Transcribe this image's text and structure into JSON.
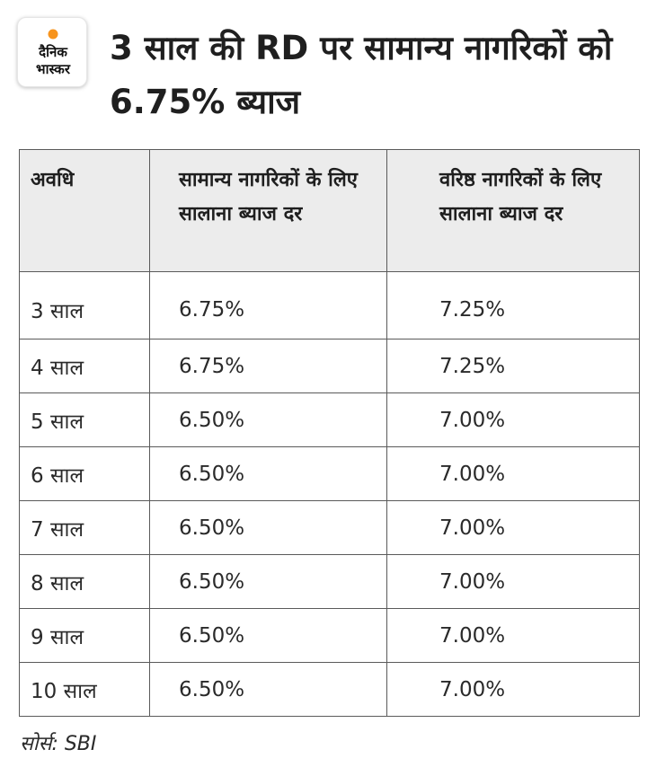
{
  "logo": {
    "line1": "दैनिक",
    "line2": "भास्कर",
    "sun_color": "#f7941d"
  },
  "title": "3 साल की RD पर सामान्य नागरिकों को 6.75% ब्याज",
  "table": {
    "headers": [
      "अवधि",
      "सामान्य नागरिकों के लिए सालाना ब्याज दर",
      "वरिष्ठ नागरिकों के लिए सालाना ब्याज दर"
    ],
    "rows": [
      [
        "3 साल",
        "6.75%",
        "7.25%"
      ],
      [
        "4 साल",
        "6.75%",
        "7.25%"
      ],
      [
        "5 साल",
        "6.50%",
        "7.00%"
      ],
      [
        "6 साल",
        "6.50%",
        "7.00%"
      ],
      [
        "7 साल",
        "6.50%",
        "7.00%"
      ],
      [
        "8 साल",
        "6.50%",
        "7.00%"
      ],
      [
        "9 साल",
        "6.50%",
        "7.00%"
      ],
      [
        "10 साल",
        "6.50%",
        "7.00%"
      ]
    ]
  },
  "source": "सोर्स: SBI"
}
